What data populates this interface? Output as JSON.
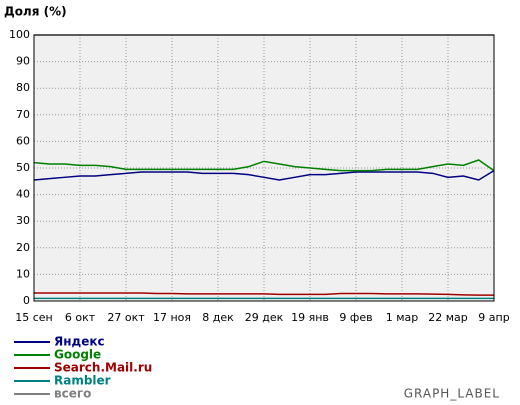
{
  "chart_data": {
    "type": "line",
    "title": "Доля (%)",
    "footer": "GRAPH_LABEL",
    "categories": [
      "15 сен",
      null,
      null,
      "6 окт",
      null,
      null,
      "27 окт",
      null,
      null,
      "17 ноя",
      null,
      null,
      "8 дек",
      null,
      null,
      "29 дек",
      null,
      null,
      "19 янв",
      null,
      null,
      "9 фев",
      null,
      null,
      "1 мар",
      null,
      null,
      "22 мар",
      null,
      null,
      "9 апр"
    ],
    "ylim": [
      0,
      100
    ],
    "yticks": [
      0,
      10,
      20,
      30,
      40,
      50,
      60,
      70,
      80,
      90,
      100
    ],
    "grid": true,
    "series": [
      {
        "name": "Яндекс",
        "color": "#000080",
        "values": [
          45.5,
          46,
          46.5,
          47,
          47,
          47.5,
          48,
          48.5,
          48.5,
          48.5,
          48.5,
          48,
          48,
          48,
          47.5,
          46.5,
          45.5,
          46.5,
          47.5,
          47.5,
          48,
          48.5,
          48.5,
          48.5,
          48.5,
          48.5,
          48,
          46.5,
          47,
          45.5,
          49
        ]
      },
      {
        "name": "Google",
        "color": "#008000",
        "values": [
          52,
          51.5,
          51.5,
          51,
          51,
          50.5,
          49.5,
          49.5,
          49.5,
          49.5,
          49.5,
          49.5,
          49.5,
          49.5,
          50.5,
          52.5,
          51.5,
          50.5,
          50,
          49.5,
          49,
          49,
          49,
          49.5,
          49.5,
          49.5,
          50.5,
          51.5,
          51,
          53,
          49
        ]
      },
      {
        "name": "Search.Mail.ru",
        "color": "#a00000",
        "values": [
          3,
          3,
          3,
          3,
          3,
          3,
          3,
          3,
          2.8,
          2.8,
          2.7,
          2.7,
          2.7,
          2.7,
          2.7,
          2.7,
          2.5,
          2.5,
          2.5,
          2.5,
          2.8,
          2.8,
          2.8,
          2.7,
          2.7,
          2.7,
          2.6,
          2.5,
          2.3,
          2.2,
          2.2
        ]
      },
      {
        "name": "Rambler",
        "color": "#008080",
        "values": [
          1,
          1,
          1,
          1,
          1,
          1,
          1,
          1,
          1,
          1,
          1,
          1,
          1,
          1,
          1,
          1,
          1,
          1,
          1,
          1,
          1,
          1,
          1,
          1,
          1,
          1,
          1,
          1,
          1,
          1,
          1
        ]
      },
      {
        "name": "всего",
        "color": "#808080",
        "values": [
          100,
          100,
          100,
          100,
          100,
          100,
          100,
          100,
          100,
          100,
          100,
          100,
          100,
          100,
          100,
          100,
          100,
          100,
          100,
          100,
          100,
          100,
          100,
          100,
          100,
          100,
          100,
          100,
          100,
          100,
          100
        ]
      }
    ]
  }
}
